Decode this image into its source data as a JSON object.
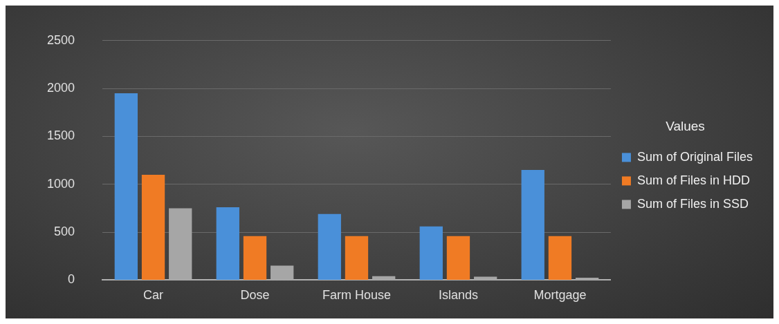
{
  "chart_data": {
    "type": "bar",
    "legend_title": "Values",
    "categories": [
      "Car",
      "Dose",
      "Farm House",
      "Islands",
      "Mortgage"
    ],
    "series": [
      {
        "name": "Sum of Original Files",
        "color": "#4a90d9",
        "values": [
          1950,
          760,
          690,
          560,
          1150
        ]
      },
      {
        "name": "Sum of Files in HDD",
        "color": "#f07b24",
        "values": [
          1100,
          460,
          460,
          460,
          460
        ]
      },
      {
        "name": "Sum of Files in SSD",
        "color": "#a6a6a6",
        "values": [
          750,
          150,
          40,
          35,
          25
        ]
      }
    ],
    "ylim": [
      0,
      2500
    ],
    "yticks": [
      0,
      500,
      1000,
      1500,
      2000,
      2500
    ],
    "grid": "y",
    "legend": "right"
  }
}
